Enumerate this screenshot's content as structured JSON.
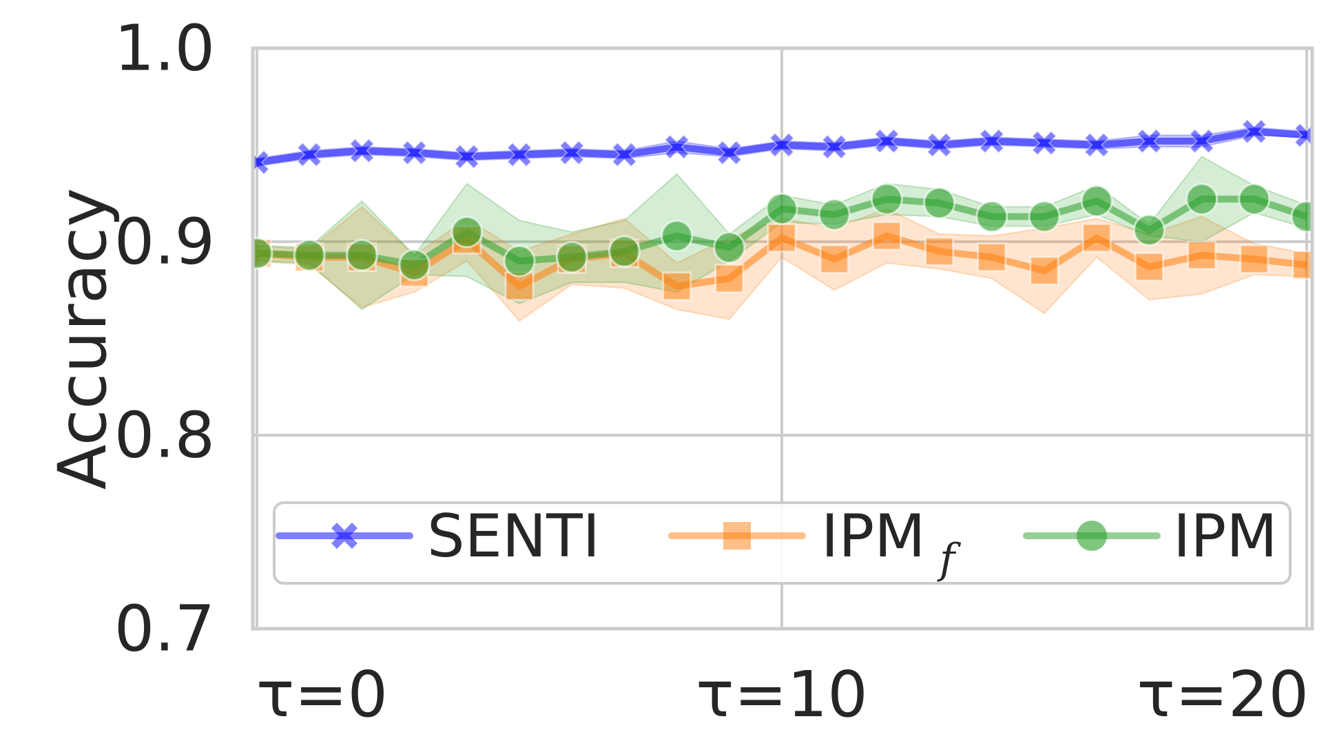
{
  "chart_data": {
    "type": "line",
    "ylabel": "Accuracy",
    "xlabel": "",
    "x": [
      0,
      1,
      2,
      3,
      4,
      5,
      6,
      7,
      8,
      9,
      10,
      11,
      12,
      13,
      14,
      15,
      16,
      17,
      18,
      19,
      20
    ],
    "xlim": [
      0,
      20
    ],
    "ylim": [
      0.7,
      1.0
    ],
    "x_ticks": [
      {
        "value": 0,
        "label": "τ=0"
      },
      {
        "value": 10,
        "label": "τ=10"
      },
      {
        "value": 20,
        "label": "τ=20"
      }
    ],
    "y_ticks": [
      {
        "value": 0.7,
        "label": "0.7"
      },
      {
        "value": 0.8,
        "label": "0.8"
      },
      {
        "value": 0.9,
        "label": "0.9"
      },
      {
        "value": 1.0,
        "label": "1.0"
      }
    ],
    "grid": true,
    "legend_position": "lower-center",
    "series": [
      {
        "name": "SENTI",
        "color": "#0000ff",
        "marker": "x",
        "values": [
          0.941,
          0.945,
          0.947,
          0.946,
          0.944,
          0.945,
          0.946,
          0.945,
          0.949,
          0.946,
          0.95,
          0.949,
          0.952,
          0.95,
          0.952,
          0.951,
          0.95,
          0.952,
          0.952,
          0.957,
          0.955
        ],
        "lower": [
          0.939,
          0.943,
          0.945,
          0.944,
          0.942,
          0.943,
          0.944,
          0.943,
          0.946,
          0.944,
          0.948,
          0.947,
          0.95,
          0.948,
          0.95,
          0.949,
          0.948,
          0.949,
          0.949,
          0.955,
          0.954
        ],
        "upper": [
          0.943,
          0.947,
          0.949,
          0.948,
          0.946,
          0.947,
          0.948,
          0.947,
          0.952,
          0.948,
          0.952,
          0.951,
          0.954,
          0.952,
          0.954,
          0.953,
          0.952,
          0.955,
          0.955,
          0.959,
          0.957
        ]
      },
      {
        "name": "IPM",
        "name_subscript": "f",
        "color": "#ff7f0e",
        "marker": "s",
        "values": [
          0.894,
          0.892,
          0.892,
          0.884,
          0.901,
          0.877,
          0.891,
          0.894,
          0.877,
          0.881,
          0.902,
          0.891,
          0.903,
          0.895,
          0.892,
          0.885,
          0.902,
          0.887,
          0.893,
          0.891,
          0.888
        ],
        "lower": [
          0.89,
          0.888,
          0.866,
          0.874,
          0.89,
          0.859,
          0.878,
          0.876,
          0.865,
          0.86,
          0.892,
          0.875,
          0.889,
          0.886,
          0.881,
          0.863,
          0.892,
          0.87,
          0.873,
          0.883,
          0.882
        ],
        "upper": [
          0.898,
          0.896,
          0.918,
          0.893,
          0.912,
          0.895,
          0.904,
          0.912,
          0.889,
          0.902,
          0.912,
          0.907,
          0.917,
          0.904,
          0.903,
          0.907,
          0.912,
          0.904,
          0.913,
          0.899,
          0.894
        ]
      },
      {
        "name": "IPM",
        "color": "#2ca02c",
        "marker": "o",
        "values": [
          0.894,
          0.893,
          0.893,
          0.888,
          0.905,
          0.89,
          0.892,
          0.895,
          0.903,
          0.897,
          0.917,
          0.914,
          0.922,
          0.92,
          0.913,
          0.913,
          0.921,
          0.906,
          0.922,
          0.922,
          0.913
        ],
        "lower": [
          0.89,
          0.889,
          0.865,
          0.883,
          0.882,
          0.868,
          0.879,
          0.879,
          0.874,
          0.89,
          0.91,
          0.909,
          0.914,
          0.913,
          0.908,
          0.908,
          0.914,
          0.903,
          0.9,
          0.915,
          0.907
        ],
        "upper": [
          0.898,
          0.897,
          0.921,
          0.893,
          0.93,
          0.911,
          0.905,
          0.911,
          0.935,
          0.904,
          0.924,
          0.919,
          0.93,
          0.927,
          0.918,
          0.918,
          0.929,
          0.909,
          0.944,
          0.929,
          0.919
        ]
      }
    ]
  },
  "legend": {
    "entries": [
      {
        "label": "SENTI",
        "subscript": ""
      },
      {
        "label": "IPM",
        "subscript": "f"
      },
      {
        "label": "IPM",
        "subscript": ""
      }
    ]
  }
}
